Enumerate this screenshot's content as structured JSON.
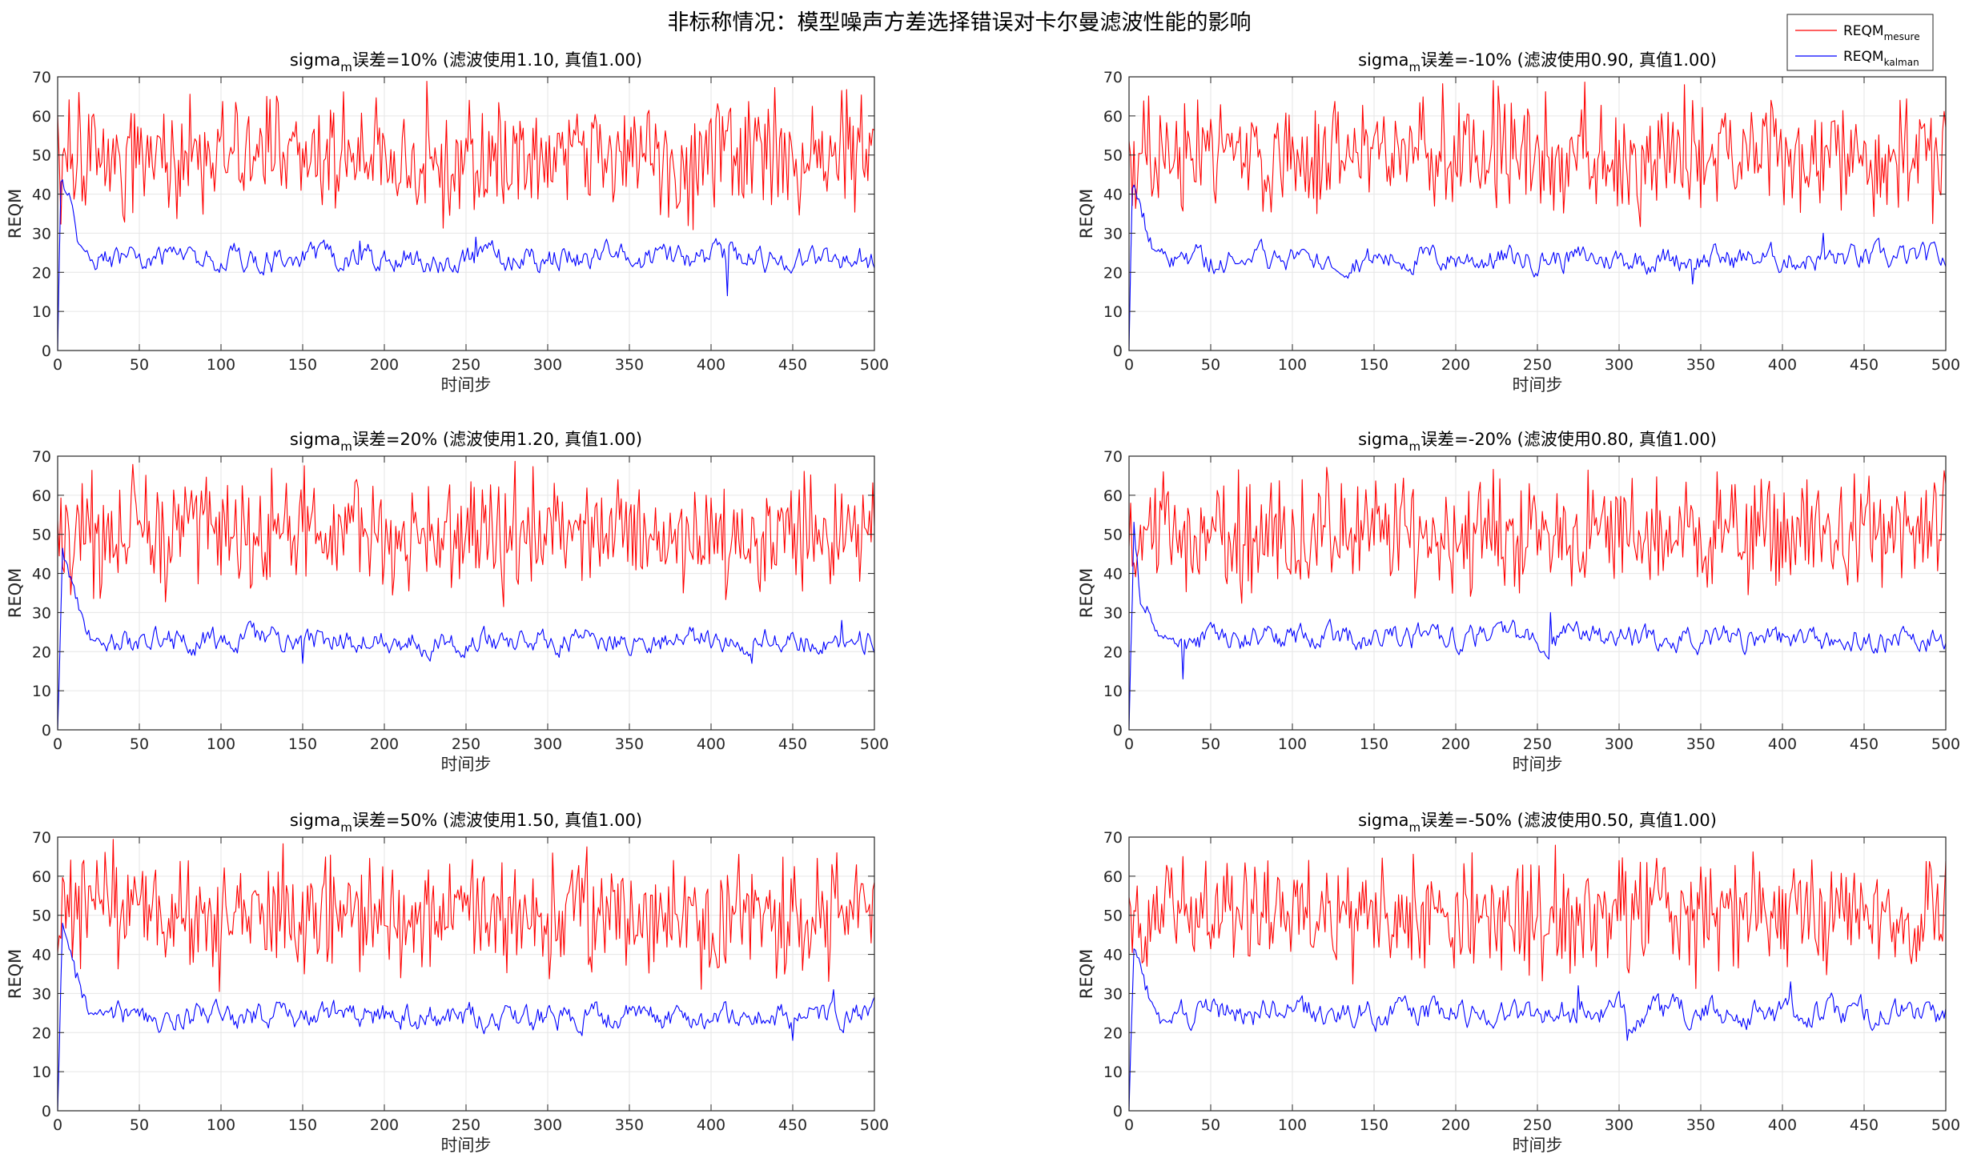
{
  "figure": {
    "suptitle": "非标称情况：模型噪声方差选择错误对卡尔曼滤波性能的影响",
    "legend": {
      "entries": [
        {
          "base": "REQM",
          "sub": "mesure",
          "color": "#ff0000"
        },
        {
          "base": "REQM",
          "sub": "kalman",
          "color": "#0000ff"
        }
      ],
      "placement": "top-right"
    },
    "colors": {
      "mesure": "#ff0000",
      "kalman": "#0000ff",
      "grid": "#e6e6e6",
      "axis": "#262626"
    }
  },
  "chart_data": [
    {
      "type": "line",
      "title_pre": "sigma",
      "title_sub": "m",
      "title_post": "误差=10% (滤波使用1.10, 真值1.00)",
      "xlabel": "时间步",
      "ylabel": "REQM",
      "xlim": [
        0,
        500
      ],
      "ylim": [
        0,
        70
      ],
      "xticks": [
        0,
        50,
        100,
        150,
        200,
        250,
        300,
        350,
        400,
        450,
        500
      ],
      "yticks": [
        0,
        10,
        20,
        30,
        40,
        50,
        60,
        70
      ],
      "grid": true,
      "series": [
        {
          "name": "REQM_mesure",
          "color": "#ff0000",
          "level": 50,
          "amp": 5.5,
          "seed": 11,
          "spikes": [
            [
              13,
              66
            ],
            [
              128,
              65
            ],
            [
              252,
              64
            ],
            [
              340,
              38
            ]
          ]
        },
        {
          "name": "REQM_kalman",
          "color": "#0000ff",
          "level": 23.5,
          "amp": 2.3,
          "seed": 12,
          "start": [
            [
              0,
              0
            ],
            [
              2,
              43
            ],
            [
              5,
              41
            ],
            [
              9,
              38
            ],
            [
              12,
              28
            ]
          ],
          "spikes": [
            [
              410,
              14
            ],
            [
              256,
              29
            ],
            [
              185,
              28
            ]
          ]
        }
      ]
    },
    {
      "type": "line",
      "title_pre": "sigma",
      "title_sub": "m",
      "title_post": "误差=-10% (滤波使用0.90, 真值1.00)",
      "xlabel": "时间步",
      "ylabel": "REQM",
      "xlim": [
        0,
        500
      ],
      "ylim": [
        0,
        70
      ],
      "xticks": [
        0,
        50,
        100,
        150,
        200,
        250,
        300,
        350,
        400,
        450,
        500
      ],
      "yticks": [
        0,
        10,
        20,
        30,
        40,
        50,
        60,
        70
      ],
      "grid": true,
      "series": [
        {
          "name": "REQM_mesure",
          "color": "#ff0000",
          "level": 50,
          "amp": 5.5,
          "seed": 21,
          "spikes": [
            [
              340,
              68
            ],
            [
              115,
              35
            ],
            [
              230,
              63
            ]
          ]
        },
        {
          "name": "REQM_kalman",
          "color": "#0000ff",
          "level": 23.5,
          "amp": 2.2,
          "seed": 22,
          "start": [
            [
              0,
              0
            ],
            [
              2,
              42
            ],
            [
              5,
              40
            ],
            [
              9,
              34
            ],
            [
              14,
              26
            ]
          ],
          "spikes": [
            [
              425,
              30
            ],
            [
              345,
              17
            ]
          ]
        }
      ]
    },
    {
      "type": "line",
      "title_pre": "sigma",
      "title_sub": "m",
      "title_post": "误差=20% (滤波使用1.20, 真值1.00)",
      "xlabel": "时间步",
      "ylabel": "REQM",
      "xlim": [
        0,
        500
      ],
      "ylim": [
        0,
        70
      ],
      "xticks": [
        0,
        50,
        100,
        150,
        200,
        250,
        300,
        350,
        400,
        450,
        500
      ],
      "yticks": [
        0,
        10,
        20,
        30,
        40,
        50,
        60,
        70
      ],
      "grid": true,
      "series": [
        {
          "name": "REQM_mesure",
          "color": "#ff0000",
          "level": 50,
          "amp": 5.5,
          "seed": 31,
          "spikes": [
            [
              15,
              63
            ],
            [
              383,
              35
            ],
            [
              343,
              64
            ]
          ]
        },
        {
          "name": "REQM_kalman",
          "color": "#0000ff",
          "level": 23,
          "amp": 2.2,
          "seed": 32,
          "start": [
            [
              0,
              0
            ],
            [
              3,
              45
            ],
            [
              8,
              38
            ],
            [
              14,
              30
            ],
            [
              20,
              23
            ]
          ],
          "spikes": [
            [
              150,
              17
            ],
            [
              425,
              17
            ],
            [
              480,
              28
            ]
          ]
        }
      ]
    },
    {
      "type": "line",
      "title_pre": "sigma",
      "title_sub": "m",
      "title_post": "误差=-20% (滤波使用0.80, 真值1.00)",
      "xlabel": "时间步",
      "ylabel": "REQM",
      "xlim": [
        0,
        500
      ],
      "ylim": [
        0,
        70
      ],
      "xticks": [
        0,
        50,
        100,
        150,
        200,
        250,
        300,
        350,
        400,
        450,
        500
      ],
      "yticks": [
        0,
        10,
        20,
        30,
        40,
        50,
        60,
        70
      ],
      "grid": true,
      "series": [
        {
          "name": "REQM_mesure",
          "color": "#ff0000",
          "level": 50,
          "amp": 5.5,
          "seed": 41,
          "spikes": [
            [
              360,
              66
            ],
            [
              75,
              35
            ],
            [
              130,
              63
            ]
          ]
        },
        {
          "name": "REQM_kalman",
          "color": "#0000ff",
          "level": 23.5,
          "amp": 2.2,
          "seed": 42,
          "start": [
            [
              0,
              0
            ],
            [
              3,
              52
            ],
            [
              7,
              33
            ],
            [
              12,
              30
            ],
            [
              18,
              24
            ]
          ],
          "spikes": [
            [
              33,
              13
            ],
            [
              258,
              30
            ]
          ]
        }
      ]
    },
    {
      "type": "line",
      "title_pre": "sigma",
      "title_sub": "m",
      "title_post": "误差=50% (滤波使用1.50, 真值1.00)",
      "xlabel": "时间步",
      "ylabel": "REQM",
      "xlim": [
        0,
        500
      ],
      "ylim": [
        0,
        70
      ],
      "xticks": [
        0,
        50,
        100,
        150,
        200,
        250,
        300,
        350,
        400,
        450,
        500
      ],
      "yticks": [
        0,
        10,
        20,
        30,
        40,
        50,
        60,
        70
      ],
      "grid": true,
      "series": [
        {
          "name": "REQM_mesure",
          "color": "#ff0000",
          "level": 50,
          "amp": 5.5,
          "seed": 51,
          "spikes": [
            [
              477,
              66
            ],
            [
              210,
              34
            ],
            [
              15,
              63
            ]
          ]
        },
        {
          "name": "REQM_kalman",
          "color": "#0000ff",
          "level": 24,
          "amp": 2.3,
          "seed": 52,
          "start": [
            [
              0,
              0
            ],
            [
              3,
              49
            ],
            [
              8,
              40
            ],
            [
              14,
              31
            ],
            [
              20,
              25
            ]
          ],
          "spikes": [
            [
              475,
              31
            ],
            [
              450,
              18
            ]
          ]
        }
      ]
    },
    {
      "type": "line",
      "title_pre": "sigma",
      "title_sub": "m",
      "title_post": "误差=-50% (滤波使用0.50, 真值1.00)",
      "xlabel": "时间步",
      "ylabel": "REQM",
      "xlim": [
        0,
        500
      ],
      "ylim": [
        0,
        70
      ],
      "xticks": [
        0,
        50,
        100,
        150,
        200,
        250,
        300,
        350,
        400,
        450,
        500
      ],
      "yticks": [
        0,
        10,
        20,
        30,
        40,
        50,
        60,
        70
      ],
      "grid": true,
      "series": [
        {
          "name": "REQM_mesure",
          "color": "#ff0000",
          "level": 50,
          "amp": 5.5,
          "seed": 61,
          "spikes": [
            [
              210,
              66
            ],
            [
              300,
              64
            ],
            [
              370,
              37
            ]
          ]
        },
        {
          "name": "REQM_kalman",
          "color": "#0000ff",
          "level": 25,
          "amp": 2.4,
          "seed": 62,
          "start": [
            [
              0,
              0
            ],
            [
              3,
              42
            ],
            [
              8,
              35
            ],
            [
              14,
              27
            ],
            [
              20,
              23
            ]
          ],
          "spikes": [
            [
              405,
              33
            ],
            [
              275,
              32
            ],
            [
              305,
              18
            ]
          ]
        }
      ]
    }
  ]
}
